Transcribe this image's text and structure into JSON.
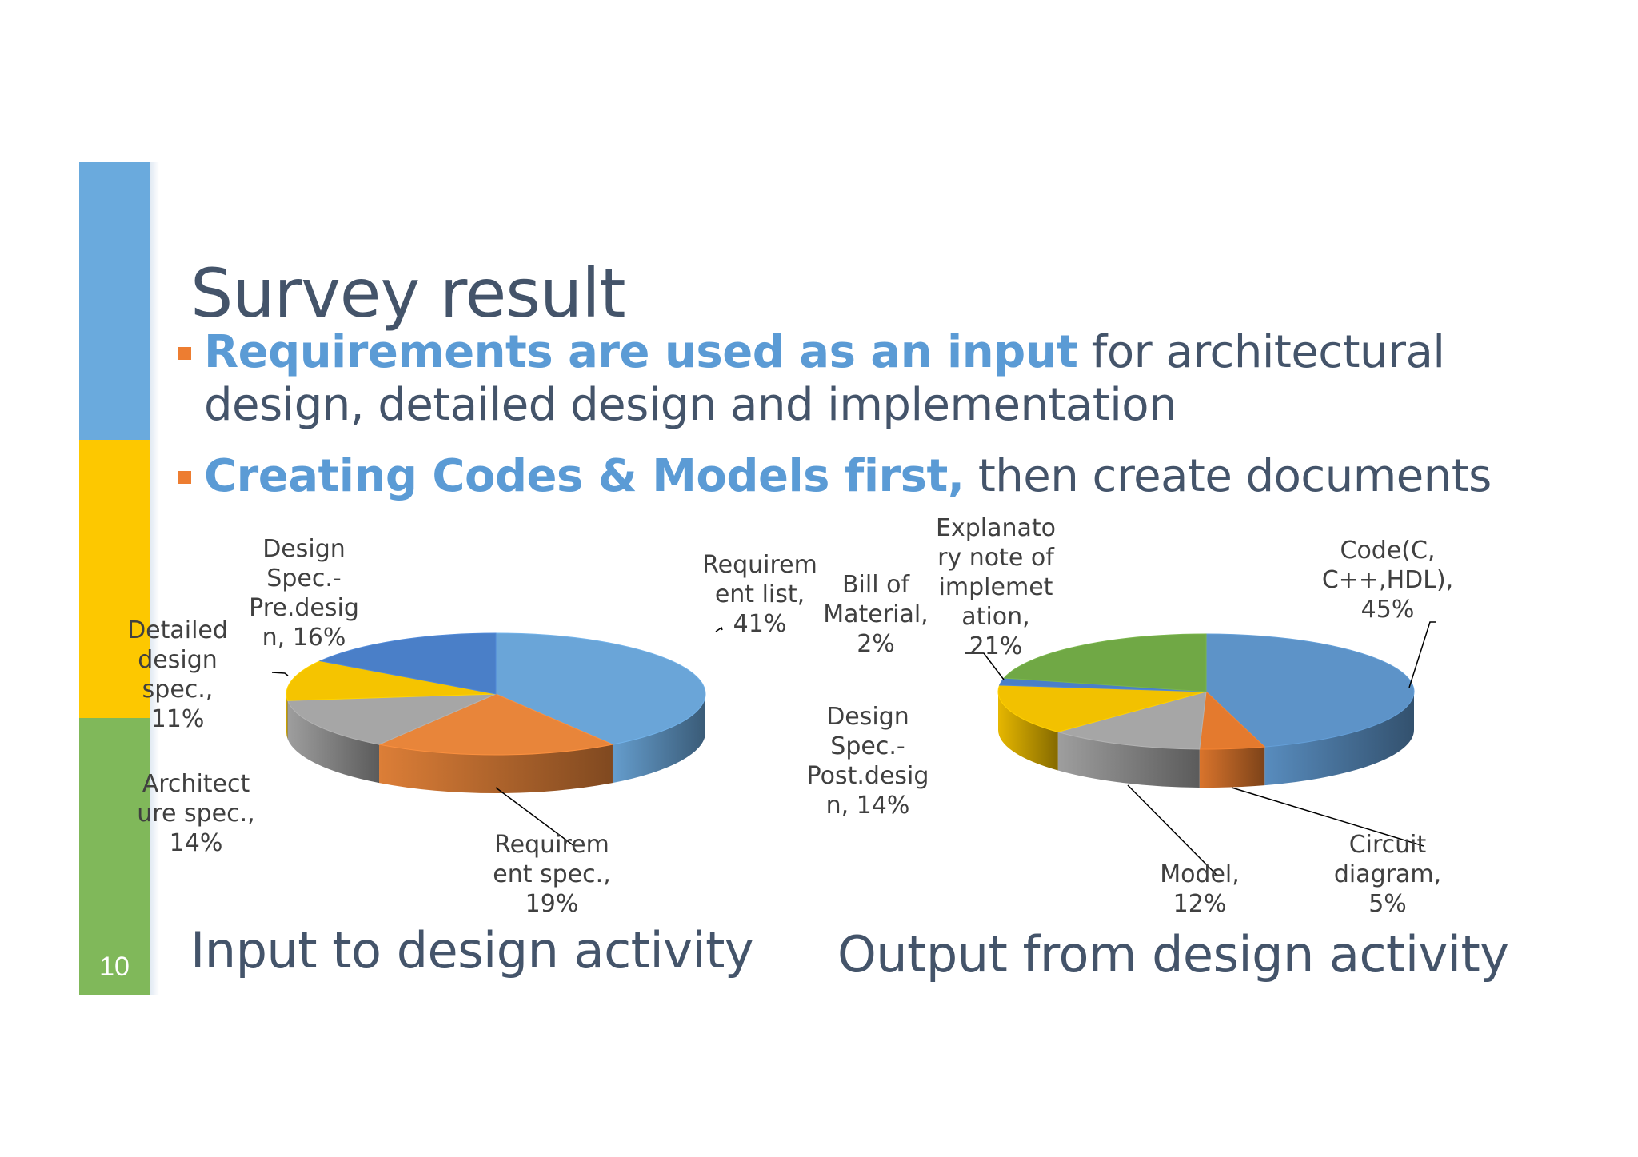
{
  "slide": {
    "number": "10",
    "title": "Survey result",
    "bullets": [
      {
        "highlight": "Requirements are used as an input",
        "rest": " for architectural design, detailed design and implementation"
      },
      {
        "highlight": "Creating Codes & Models first,",
        "rest": " then create documents"
      }
    ],
    "colors": {
      "bar_top": "#6aaadd",
      "bar_middle": "#fdc800",
      "bar_bottom": "#80b85a",
      "highlight": "#5b9bd5",
      "bullet_marker": "#ed7d31",
      "text": "#44546a"
    }
  },
  "chart_data": [
    {
      "type": "pie",
      "title": "Input to design activity",
      "style": "3d",
      "slices": [
        {
          "label": "Requirem\nent list,\n41%",
          "value": 41,
          "color": "#6aa5d8"
        },
        {
          "label": "Requirem\nent spec.,\n19%",
          "value": 19,
          "color": "#e8853a"
        },
        {
          "label": "Architect\nure spec.,\n14%",
          "value": 14,
          "color": "#a6a6a6"
        },
        {
          "label": "Detailed\ndesign\nspec.,\n11%",
          "value": 11,
          "color": "#f5c400"
        },
        {
          "label": "Design\nSpec.-\nPre.desig\nn, 16%",
          "value": 16,
          "color": "#4a7fc8"
        }
      ]
    },
    {
      "type": "pie",
      "title": "Output from design activity",
      "style": "3d",
      "slices": [
        {
          "label": "Code(C,\nC++,HDL),\n45%",
          "value": 45,
          "color": "#5d93c8"
        },
        {
          "label": "Circuit\ndiagram,\n5%",
          "value": 5,
          "color": "#e47a2e"
        },
        {
          "label": "Model,\n12%",
          "value": 12,
          "color": "#a6a6a6"
        },
        {
          "label": "Design\nSpec.-\nPost.desig\nn, 14%",
          "value": 14,
          "color": "#f2c100"
        },
        {
          "label": "Bill of\nMaterial,\n2%",
          "value": 2,
          "color": "#4a7fc8"
        },
        {
          "label": "Explanato\nry note of\nimplemet\nation,\n21%",
          "value": 21,
          "color": "#70a845"
        }
      ]
    }
  ]
}
